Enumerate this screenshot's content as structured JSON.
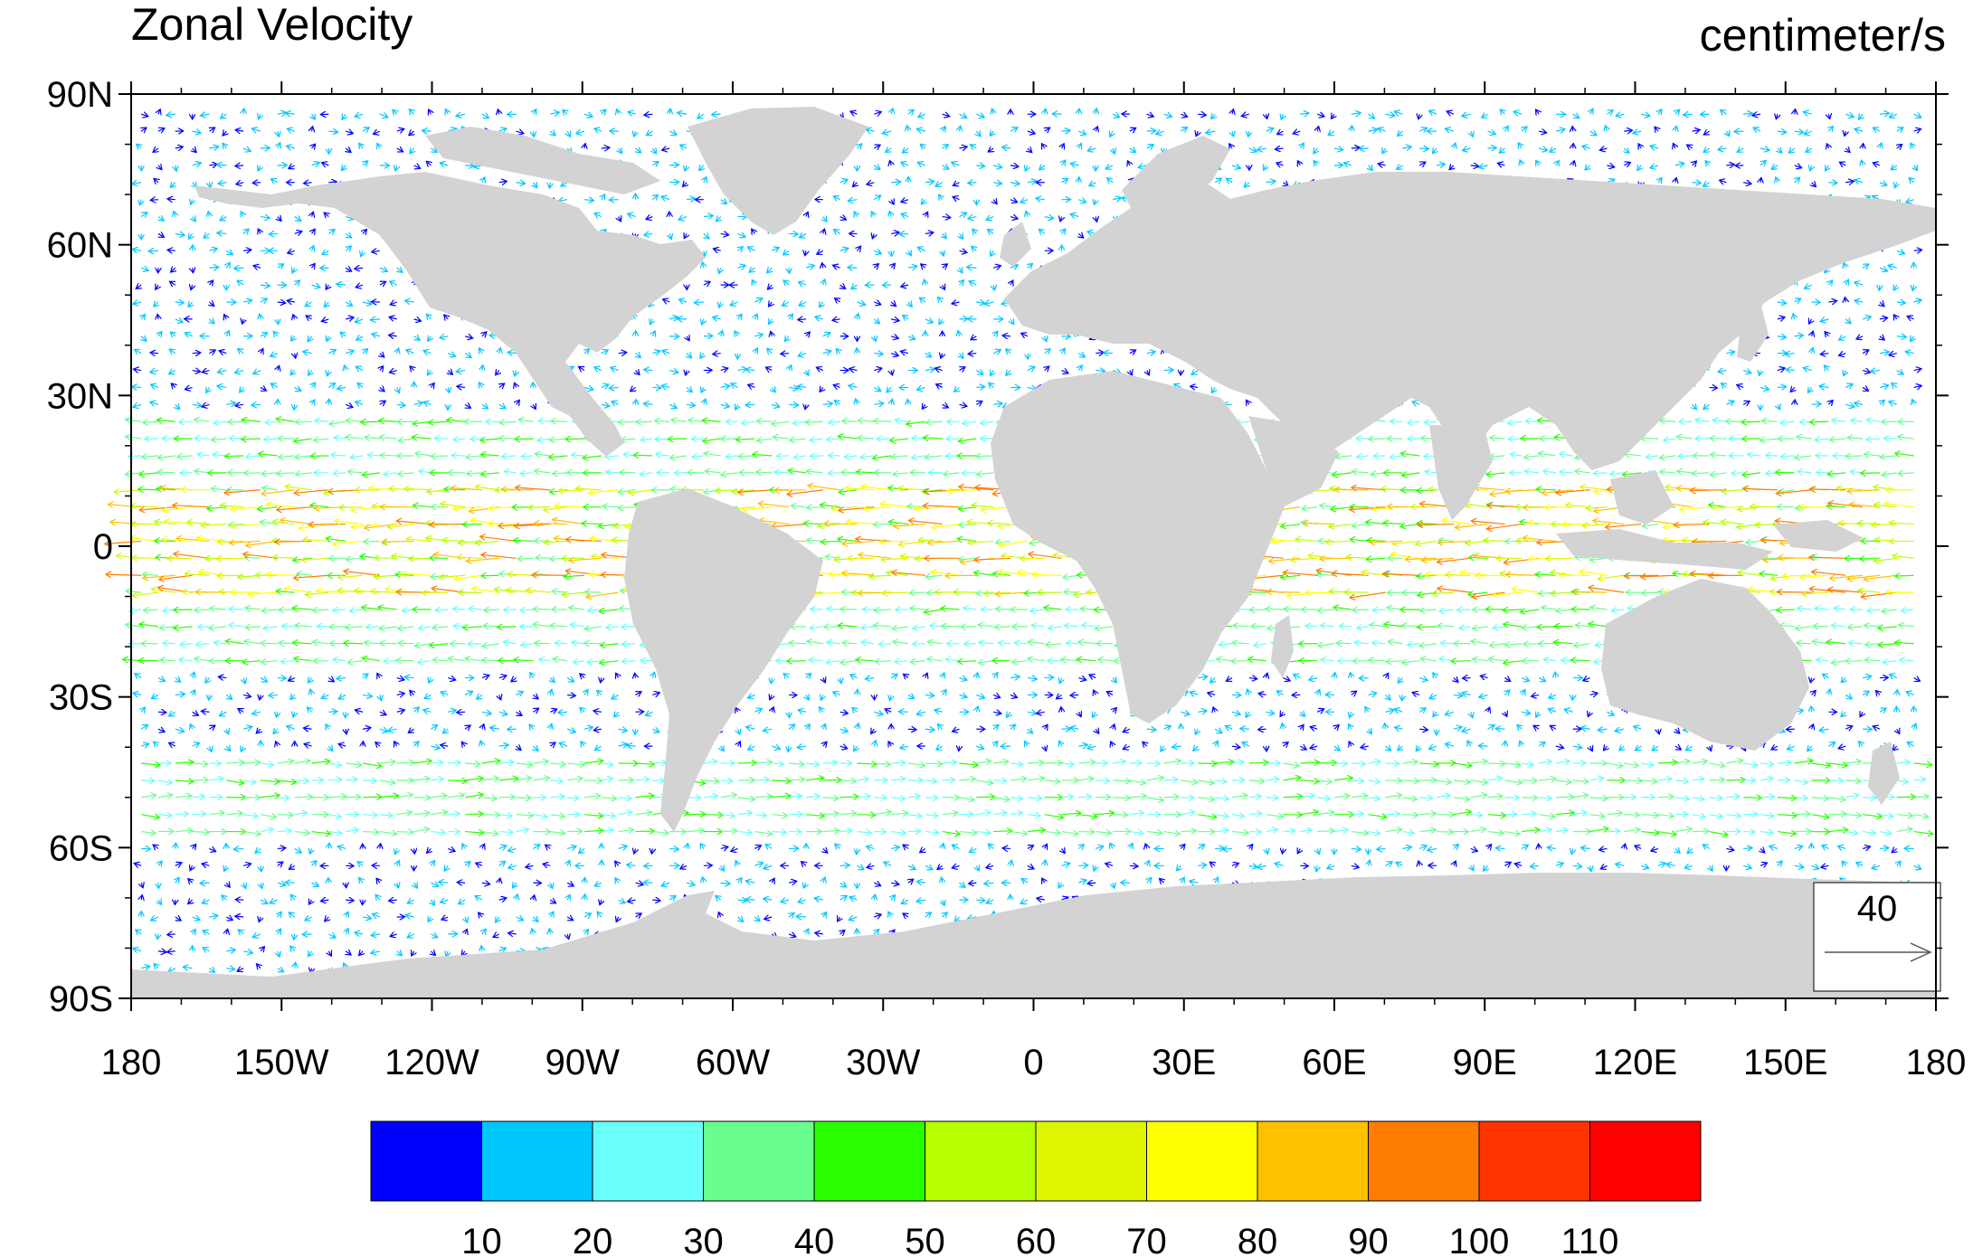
{
  "title": "Zonal Velocity",
  "units": "centimeter/s",
  "map": {
    "projection": "cylindrical-equidistant",
    "land_color": "#d3d3d3",
    "ocean_color": "#ffffff",
    "lat_range": [
      -90,
      90
    ],
    "lon_range": [
      -180,
      180
    ],
    "lat_ticks": [
      {
        "value": 90,
        "label": "90N"
      },
      {
        "value": 60,
        "label": "60N"
      },
      {
        "value": 30,
        "label": "30N"
      },
      {
        "value": 0,
        "label": "0"
      },
      {
        "value": -30,
        "label": "30S"
      },
      {
        "value": -60,
        "label": "60S"
      },
      {
        "value": -90,
        "label": "90S"
      }
    ],
    "lon_ticks": [
      {
        "value": -180,
        "label": "180"
      },
      {
        "value": -150,
        "label": "150W"
      },
      {
        "value": -120,
        "label": "120W"
      },
      {
        "value": -90,
        "label": "90W"
      },
      {
        "value": -60,
        "label": "60W"
      },
      {
        "value": -30,
        "label": "30W"
      },
      {
        "value": 0,
        "label": "0"
      },
      {
        "value": 30,
        "label": "30E"
      },
      {
        "value": 60,
        "label": "60E"
      },
      {
        "value": 90,
        "label": "90E"
      },
      {
        "value": 120,
        "label": "120E"
      },
      {
        "value": 150,
        "label": "150E"
      },
      {
        "value": 180,
        "label": "180"
      }
    ]
  },
  "reference_vector": {
    "magnitude": 40,
    "label": "40"
  },
  "colorbar": {
    "colors": [
      "#0000ff",
      "#00c8ff",
      "#6afff8",
      "#69ff8f",
      "#2aff00",
      "#b6ff00",
      "#ddf500",
      "#ffff00",
      "#ffc000",
      "#ff7d00",
      "#ff3300",
      "#ff0000"
    ],
    "labels": [
      "10",
      "20",
      "30",
      "40",
      "50",
      "60",
      "70",
      "80",
      "90",
      "100",
      "110"
    ]
  }
}
